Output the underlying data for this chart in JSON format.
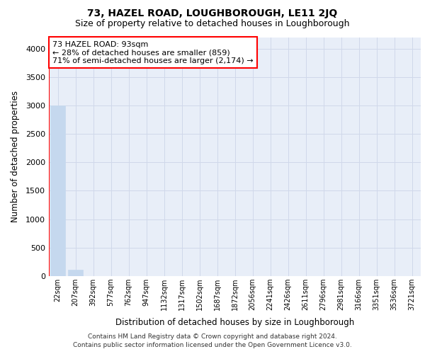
{
  "title1": "73, HAZEL ROAD, LOUGHBOROUGH, LE11 2JQ",
  "title2": "Size of property relative to detached houses in Loughborough",
  "xlabel": "Distribution of detached houses by size in Loughborough",
  "ylabel": "Number of detached properties",
  "categories": [
    "22sqm",
    "207sqm",
    "392sqm",
    "577sqm",
    "762sqm",
    "947sqm",
    "1132sqm",
    "1317sqm",
    "1502sqm",
    "1687sqm",
    "1872sqm",
    "2056sqm",
    "2241sqm",
    "2426sqm",
    "2611sqm",
    "2796sqm",
    "2981sqm",
    "3166sqm",
    "3351sqm",
    "3536sqm",
    "3721sqm"
  ],
  "values": [
    3000,
    110,
    0,
    0,
    0,
    0,
    0,
    0,
    0,
    0,
    0,
    0,
    0,
    0,
    0,
    0,
    0,
    0,
    0,
    0,
    0
  ],
  "bar_color": "#c5d8ee",
  "bar_edge_color": "#c5d8ee",
  "ylim": [
    0,
    4200
  ],
  "yticks": [
    0,
    500,
    1000,
    1500,
    2000,
    2500,
    3000,
    3500,
    4000
  ],
  "annotation_text": "73 HAZEL ROAD: 93sqm\n← 28% of detached houses are smaller (859)\n71% of semi-detached houses are larger (2,174) →",
  "annotation_box_color": "white",
  "annotation_box_edge_color": "red",
  "red_line_x": -0.5,
  "grid_color": "#d0d8ea",
  "background_color": "#e8eef8",
  "footer": "Contains HM Land Registry data © Crown copyright and database right 2024.\nContains public sector information licensed under the Open Government Licence v3.0."
}
